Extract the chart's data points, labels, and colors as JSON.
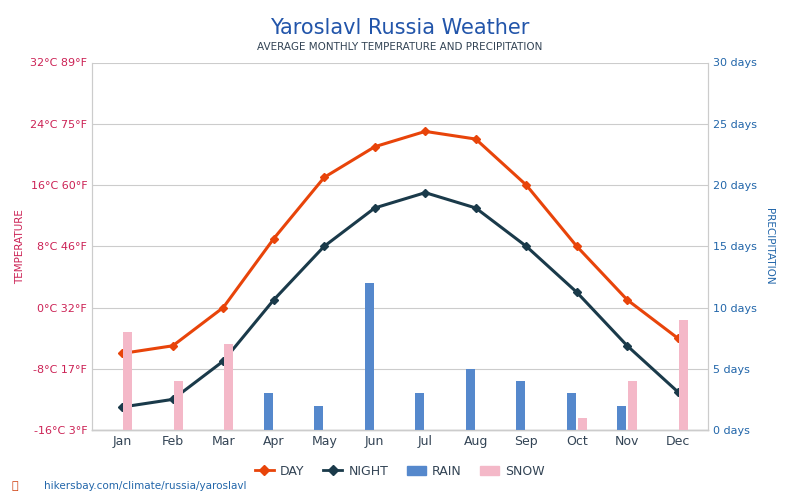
{
  "title": "Yaroslavl Russia Weather",
  "subtitle": "AVERAGE MONTHLY TEMPERATURE AND PRECIPITATION",
  "months": [
    "Jan",
    "Feb",
    "Mar",
    "Apr",
    "May",
    "Jun",
    "Jul",
    "Aug",
    "Sep",
    "Oct",
    "Nov",
    "Dec"
  ],
  "day_temp": [
    -6,
    -5,
    0,
    9,
    17,
    21,
    23,
    22,
    16,
    8,
    1,
    -4
  ],
  "night_temp": [
    -13,
    -12,
    -7,
    1,
    8,
    13,
    15,
    13,
    8,
    2,
    -5,
    -11
  ],
  "rain_days": [
    0,
    0,
    0,
    3,
    2,
    12,
    3,
    5,
    4,
    3,
    2,
    0
  ],
  "snow_days": [
    8,
    4,
    7,
    0,
    0,
    0,
    0,
    0,
    0,
    1,
    4,
    9
  ],
  "temp_ylim": [
    -16,
    32
  ],
  "temp_yticks": [
    -16,
    -8,
    0,
    8,
    16,
    24,
    32
  ],
  "temp_ytick_labels_c": [
    "-16°C",
    "-8°C",
    "0°C",
    "8°C",
    "16°C",
    "24°C",
    "32°C"
  ],
  "temp_ytick_labels_f": [
    "3°F",
    "17°F",
    "32°F",
    "46°F",
    "60°F",
    "75°F",
    "89°F"
  ],
  "precip_ylim": [
    0,
    30
  ],
  "precip_yticks": [
    0,
    5,
    10,
    15,
    20,
    25,
    30
  ],
  "precip_ytick_labels": [
    "0 days",
    "5 days",
    "10 days",
    "15 days",
    "20 days",
    "25 days",
    "30 days"
  ],
  "day_color": "#e8440a",
  "night_color": "#1a3a4a",
  "rain_color": "#5588cc",
  "snow_color": "#f4b8c8",
  "title_color": "#2255aa",
  "subtitle_color": "#334455",
  "left_label_color": "#cc2255",
  "right_label_color": "#2266aa",
  "axis_color": "#cccccc",
  "background_color": "#ffffff",
  "grid_color": "#cccccc",
  "url_text": "hikersbay.com/climate/russia/yaroslavl",
  "ylabel_left": "TEMPERATURE",
  "ylabel_right": "PRECIPITATION"
}
